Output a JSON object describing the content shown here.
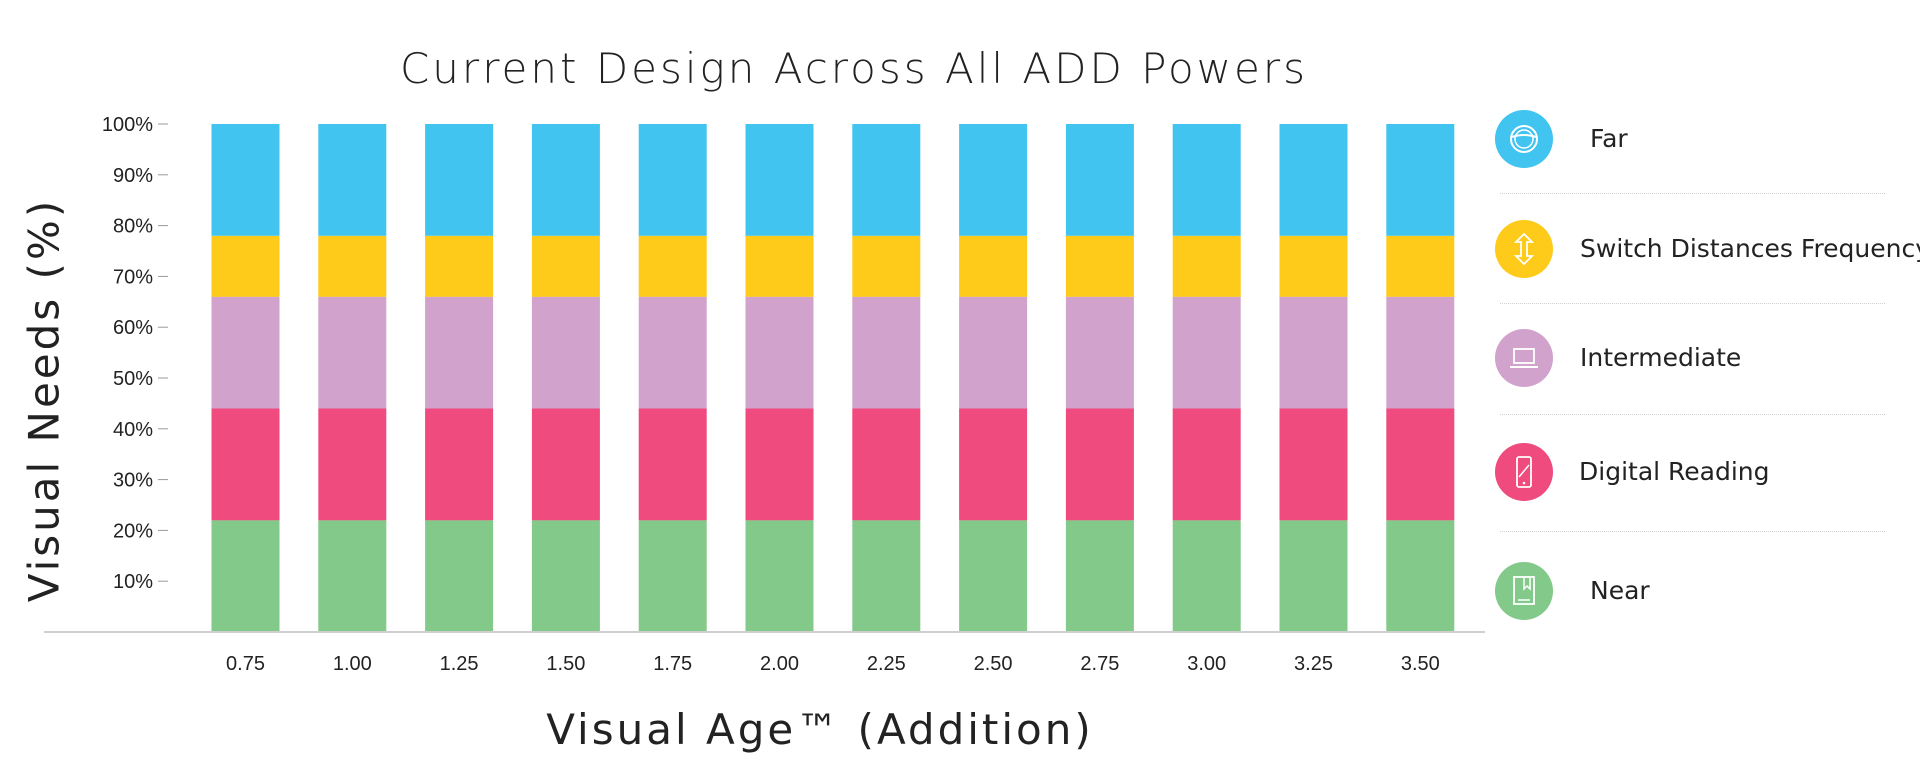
{
  "chart_data": {
    "type": "bar",
    "stacked": true,
    "title": "Current Design Across All ADD Powers",
    "xlabel": "Visual Age™ (Addition)",
    "ylabel": "Visual Needs (%)",
    "categories": [
      "0.75",
      "1.00",
      "1.25",
      "1.50",
      "1.75",
      "2.00",
      "2.25",
      "2.50",
      "2.75",
      "3.00",
      "3.25",
      "3.50"
    ],
    "y_ticks": [
      "10%",
      "20%",
      "30%",
      "40%",
      "50%",
      "60%",
      "70%",
      "80%",
      "90%",
      "100%"
    ],
    "ylim": [
      0,
      100
    ],
    "grid": false,
    "legend_position": "right",
    "series": [
      {
        "name": "Near",
        "color": "#83c98a",
        "icon": "book-icon",
        "values": [
          22,
          22,
          22,
          22,
          22,
          22,
          22,
          22,
          22,
          22,
          22,
          22
        ]
      },
      {
        "name": "Digital Reading",
        "color": "#ef4b7e",
        "icon": "smartphone-icon",
        "values": [
          22,
          22,
          22,
          22,
          22,
          22,
          22,
          22,
          22,
          22,
          22,
          22
        ]
      },
      {
        "name": "Intermediate",
        "color": "#d1a2cc",
        "icon": "laptop-icon",
        "values": [
          22,
          22,
          22,
          22,
          22,
          22,
          22,
          22,
          22,
          22,
          22,
          22
        ]
      },
      {
        "name": "Switch Distances Frequency",
        "color": "#fecb1a",
        "icon": "up-down-arrows-icon",
        "values": [
          12,
          12,
          12,
          12,
          12,
          12,
          12,
          12,
          12,
          12,
          12,
          12
        ]
      },
      {
        "name": "Far",
        "color": "#41c4ef",
        "icon": "steering-wheel-icon",
        "values": [
          22,
          22,
          22,
          22,
          22,
          22,
          22,
          22,
          22,
          22,
          22,
          22
        ]
      }
    ]
  }
}
